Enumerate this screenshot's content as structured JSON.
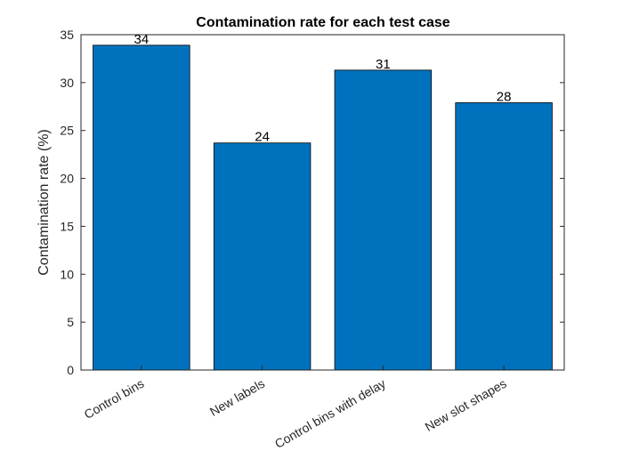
{
  "chart_data": {
    "type": "bar",
    "title": "Contamination rate for each test case",
    "xlabel": "",
    "ylabel": "Contamination rate (%)",
    "categories": [
      "Control bins",
      "New labels",
      "Control bins with delay",
      "New slot shapes"
    ],
    "values": [
      33.9,
      23.7,
      31.3,
      27.9
    ],
    "data_labels": [
      "34",
      "24",
      "31",
      "28"
    ],
    "ylim": [
      0,
      35
    ],
    "yticks": [
      0,
      5,
      10,
      15,
      20,
      25,
      30,
      35
    ],
    "grid": false,
    "bar_color": "#0072BD",
    "x_tick_rotation": "30 degrees"
  }
}
